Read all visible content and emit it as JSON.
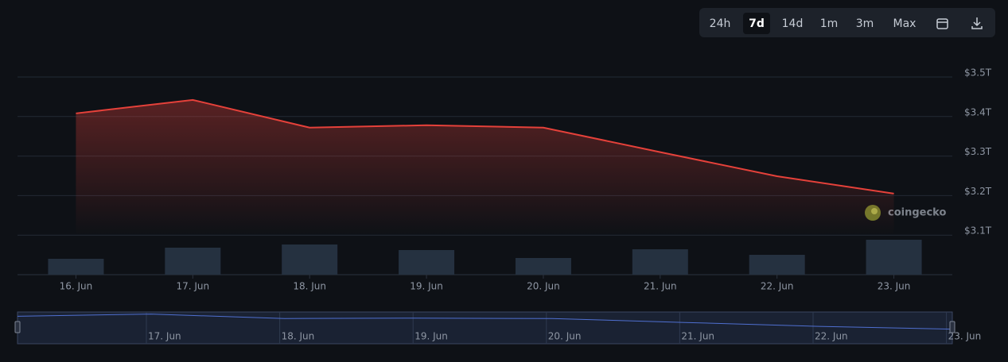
{
  "toolbar": {
    "buttons": [
      "24h",
      "7d",
      "14d",
      "1m",
      "3m",
      "Max"
    ],
    "active": 1
  },
  "watermark": "coingecko",
  "chart_data": {
    "type": "line",
    "categories": [
      "16. Jun",
      "17. Jun",
      "18. Jun",
      "19. Jun",
      "20. Jun",
      "21. Jun",
      "22. Jun",
      "23. Jun"
    ],
    "series": [
      {
        "color": "#e5413a",
        "values": [
          3.408,
          3.442,
          3.372,
          3.378,
          3.372,
          3.31,
          3.249,
          3.205
        ]
      }
    ],
    "volume": {
      "color": "#253140",
      "values": [
        20,
        34,
        38,
        31,
        21,
        32,
        25,
        44
      ],
      "ylim": [
        0,
        50
      ]
    },
    "ylim": [
      3.0,
      3.5
    ],
    "yticks": [
      {
        "value": 3.5,
        "label": "$3.5T"
      },
      {
        "value": 3.4,
        "label": "$3.4T"
      },
      {
        "value": 3.3,
        "label": "$3.3T"
      },
      {
        "value": 3.2,
        "label": "$3.2T"
      },
      {
        "value": 3.1,
        "label": "$3.1T"
      }
    ],
    "grid": true
  },
  "navigator": {
    "labels": [
      "17. Jun",
      "18. Jun",
      "19. Jun",
      "20. Jun",
      "21. Jun",
      "22. Jun",
      "23. Jun"
    ]
  }
}
